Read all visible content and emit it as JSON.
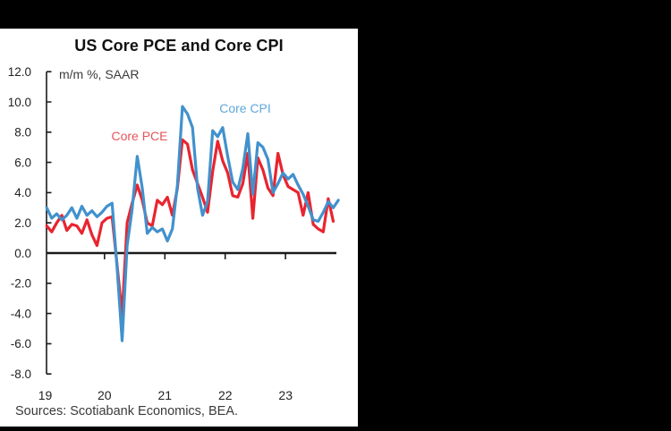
{
  "header": {
    "title": "US Core PCE and Core CPI",
    "subtitle": "m/m %, SAAR"
  },
  "legend": {
    "cpi": {
      "label": "Core CPI",
      "color": "#5fa8dc"
    },
    "pce": {
      "label": "Core PCE",
      "color": "#e4555c"
    }
  },
  "source": "Sources: Scotiabank Economics, BEA.",
  "chart_data": {
    "type": "line",
    "title": "US Core PCE and Core CPI",
    "units": "m/m %, SAAR",
    "grid": false,
    "legend_position": "inline-labels",
    "ylim": [
      -8,
      12
    ],
    "y_step": 2,
    "y_tick_labels": [
      "12.0",
      "10.0",
      "8.0",
      "6.0",
      "4.0",
      "2.0",
      "0.0",
      "-2.0",
      "-4.0",
      "-6.0",
      "-8.0"
    ],
    "x_tick_labels": [
      "19",
      "20",
      "21",
      "22",
      "23"
    ],
    "x": [
      "2019-01",
      "2019-02",
      "2019-03",
      "2019-04",
      "2019-05",
      "2019-06",
      "2019-07",
      "2019-08",
      "2019-09",
      "2019-10",
      "2019-11",
      "2019-12",
      "2020-01",
      "2020-02",
      "2020-03",
      "2020-04",
      "2020-05",
      "2020-06",
      "2020-07",
      "2020-08",
      "2020-09",
      "2020-10",
      "2020-11",
      "2020-12",
      "2021-01",
      "2021-02",
      "2021-03",
      "2021-04",
      "2021-05",
      "2021-06",
      "2021-07",
      "2021-08",
      "2021-09",
      "2021-10",
      "2021-11",
      "2021-12",
      "2022-01",
      "2022-02",
      "2022-03",
      "2022-04",
      "2022-05",
      "2022-06",
      "2022-07",
      "2022-08",
      "2022-09",
      "2022-10",
      "2022-11",
      "2022-12",
      "2023-01",
      "2023-02",
      "2023-03",
      "2023-04",
      "2023-05",
      "2023-06",
      "2023-07",
      "2023-08",
      "2023-09",
      "2023-10",
      "2023-11"
    ],
    "series": [
      {
        "name": "Core CPI",
        "color": "#4191cd",
        "values": [
          3.0,
          2.3,
          2.6,
          2.2,
          2.5,
          3.0,
          2.3,
          3.1,
          2.5,
          2.8,
          2.4,
          2.7,
          3.1,
          3.3,
          -1.0,
          -5.8,
          0.5,
          2.9,
          6.4,
          4.3,
          1.3,
          1.7,
          1.4,
          1.6,
          0.8,
          1.6,
          4.5,
          9.7,
          9.2,
          8.3,
          4.3,
          2.5,
          3.4,
          8.1,
          7.7,
          8.3,
          6.4,
          4.7,
          4.2,
          5.6,
          7.9,
          3.9,
          7.3,
          7.0,
          6.2,
          4.0,
          4.6,
          5.3,
          4.9,
          5.2,
          4.5,
          3.9,
          3.1,
          2.2,
          2.1,
          2.7,
          3.4,
          3.0,
          3.5
        ]
      },
      {
        "name": "Core PCE",
        "color": "#e9242f",
        "values": [
          1.8,
          1.4,
          2.0,
          2.5,
          1.5,
          1.9,
          1.8,
          1.3,
          2.2,
          1.2,
          0.5,
          2.0,
          2.3,
          2.4,
          -0.8,
          -4.1,
          2.0,
          3.3,
          4.5,
          3.5,
          2.0,
          1.8,
          3.5,
          3.2,
          3.7,
          2.5,
          4.3,
          7.5,
          7.2,
          5.5,
          4.6,
          3.7,
          2.7,
          5.4,
          7.4,
          6.1,
          5.3,
          3.8,
          3.7,
          4.6,
          6.6,
          2.3,
          6.3,
          5.5,
          4.3,
          3.8,
          6.6,
          5.2,
          4.4,
          4.2,
          4.0,
          2.5,
          4.0,
          1.9,
          1.6,
          1.4,
          3.6,
          2.1,
          null
        ]
      }
    ]
  }
}
